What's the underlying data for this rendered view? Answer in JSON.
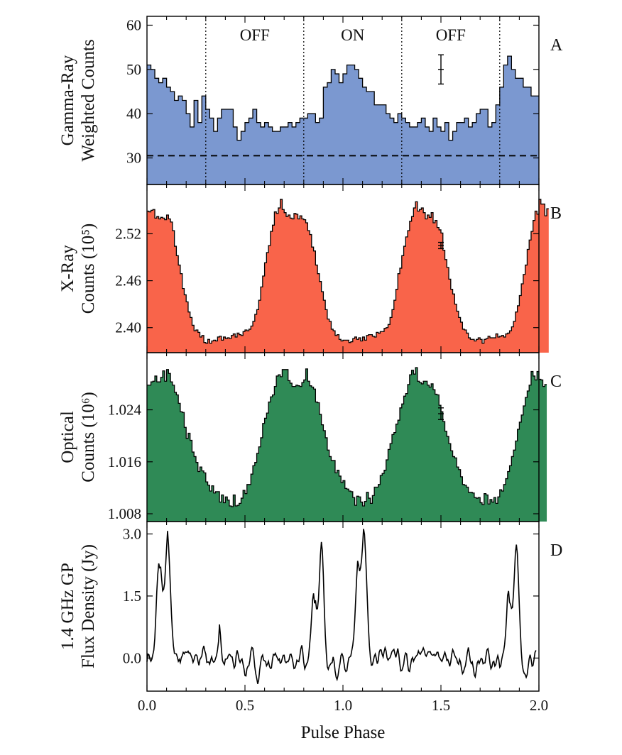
{
  "chart_data": [
    {
      "type": "area",
      "style": "step histogram",
      "panel": "A",
      "ylabel_lines": [
        "Gamma-Ray",
        "Weighted Counts"
      ],
      "ylim": [
        24,
        62
      ],
      "yticks": [
        30,
        40,
        50,
        60
      ],
      "ytick_labels": [
        "30",
        "40",
        "50",
        "60"
      ],
      "fill": "#7b98d0",
      "baseline": 30.5,
      "region_lines_x": [
        0.3,
        0.8,
        1.3,
        1.8
      ],
      "region_labels": [
        {
          "text": "OFF",
          "x": 0.55
        },
        {
          "text": "ON",
          "x": 1.05
        },
        {
          "text": "OFF",
          "x": 1.55
        }
      ],
      "errorbar": {
        "x": 1.5,
        "y": 50,
        "err": 3.3
      },
      "bin_width": 0.02,
      "values": [
        51,
        50,
        48,
        47,
        48,
        46,
        45,
        43,
        44,
        43,
        40,
        37,
        43,
        38,
        44,
        41,
        39,
        36,
        39,
        41,
        41,
        41,
        37,
        34,
        36,
        38,
        39,
        41,
        38,
        37,
        38,
        37,
        36,
        36,
        37,
        37,
        38,
        37,
        38,
        39,
        39,
        40,
        40,
        38,
        39,
        46,
        47,
        50,
        49,
        47,
        49,
        51,
        51,
        50,
        48,
        46,
        45,
        45,
        42,
        42,
        42,
        40,
        39,
        38,
        40,
        39,
        38,
        37,
        37,
        38,
        39,
        37,
        36,
        39,
        37,
        36,
        38,
        34,
        36,
        38,
        38,
        39,
        37,
        38,
        40,
        41,
        41,
        37,
        38,
        42,
        46,
        51,
        53,
        50,
        48,
        48,
        46,
        46,
        44,
        44
      ]
    },
    {
      "type": "area",
      "style": "step histogram",
      "panel": "B",
      "ylabel_lines": [
        "X-Ray",
        "Counts (10⁵)"
      ],
      "ylim": [
        2.368,
        2.583
      ],
      "yticks": [
        2.4,
        2.46,
        2.52
      ],
      "ytick_labels": [
        "2.40",
        "2.46",
        "2.52"
      ],
      "fill": "#f9644a",
      "errorbar": {
        "x": 1.5,
        "y": 2.505,
        "err": 0.004
      },
      "bin_width": 0.01,
      "values": [
        2.549,
        2.548,
        2.55,
        2.551,
        2.54,
        2.542,
        2.539,
        2.541,
        2.54,
        2.538,
        2.544,
        2.539,
        2.535,
        2.524,
        2.504,
        2.492,
        2.48,
        2.469,
        2.45,
        2.442,
        2.433,
        2.42,
        2.413,
        2.403,
        2.396,
        2.397,
        2.394,
        2.388,
        2.39,
        2.381,
        2.38,
        2.385,
        2.38,
        2.383,
        2.384,
        2.383,
        2.388,
        2.389,
        2.384,
        2.388,
        2.386,
        2.387,
        2.386,
        2.39,
        2.392,
        2.388,
        2.393,
        2.391,
        2.39,
        2.395,
        2.397,
        2.396,
        2.398,
        2.402,
        2.408,
        2.417,
        2.423,
        2.435,
        2.452,
        2.466,
        2.483,
        2.496,
        2.505,
        2.523,
        2.531,
        2.548,
        2.546,
        2.553,
        2.564,
        2.551,
        2.547,
        2.542,
        2.544,
        2.54,
        2.539,
        2.546,
        2.545,
        2.539,
        2.543,
        2.539,
        2.538,
        2.534,
        2.524,
        2.519,
        2.503,
        2.498,
        2.48,
        2.469,
        2.459,
        2.446,
        2.435,
        2.423,
        2.411,
        2.408,
        2.398,
        2.396,
        2.39,
        2.391,
        2.385,
        2.383,
        2.384,
        2.384,
        2.384,
        2.381,
        2.382,
        2.386,
        2.388,
        2.385,
        2.387,
        2.383,
        2.388,
        2.384,
        2.39,
        2.391,
        2.391,
        2.389,
        2.388,
        2.394,
        2.393,
        2.395,
        2.395,
        2.399,
        2.4,
        2.404,
        2.413,
        2.423,
        2.435,
        2.449,
        2.469,
        2.476,
        2.492,
        2.504,
        2.516,
        2.524,
        2.536,
        2.542,
        2.553,
        2.561,
        2.549,
        2.551,
        2.553,
        2.547,
        2.539,
        2.544,
        2.541,
        2.547,
        2.534,
        2.537,
        2.528,
        2.525,
        2.521,
        2.499,
        2.487,
        2.477,
        2.462,
        2.449,
        2.443,
        2.43,
        2.421,
        2.413,
        2.407,
        2.398,
        2.397,
        2.393,
        2.387,
        2.385,
        2.385,
        2.383,
        2.385,
        2.387,
        2.385,
        2.38,
        2.385,
        2.386,
        2.389,
        2.387,
        2.387,
        2.387,
        2.392,
        2.388,
        2.389,
        2.39,
        2.388,
        2.392,
        2.393,
        2.396,
        2.401,
        2.408,
        2.42,
        2.428,
        2.441,
        2.456,
        2.468,
        2.48,
        2.5,
        2.512,
        2.523,
        2.537,
        2.549,
        2.545,
        2.564,
        2.558,
        2.558,
        2.543,
        2.552
      ]
    },
    {
      "type": "area",
      "style": "step histogram",
      "panel": "C",
      "ylabel_lines": [
        "Optical",
        "Counts (10⁶)"
      ],
      "ylim": [
        1.0068,
        1.0328
      ],
      "yticks": [
        1.008,
        1.016,
        1.024
      ],
      "ytick_labels": [
        "1.008",
        "1.016",
        "1.024"
      ],
      "fill": "#2f8a56",
      "errorbar": {
        "x": 1.5,
        "y": 1.0234,
        "err": 0.0009
      },
      "bin_width": 0.01,
      "values": [
        1.0278,
        1.0278,
        1.0283,
        1.0284,
        1.0292,
        1.0283,
        1.0283,
        1.029,
        1.03,
        1.0284,
        1.0302,
        1.0296,
        1.0283,
        1.0278,
        1.0267,
        1.0263,
        1.025,
        1.0237,
        1.0236,
        1.0213,
        1.0196,
        1.0204,
        1.0193,
        1.0175,
        1.0168,
        1.0159,
        1.0145,
        1.0152,
        1.0146,
        1.0143,
        1.0129,
        1.0124,
        1.0115,
        1.0123,
        1.0112,
        1.0114,
        1.0114,
        1.0098,
        1.0109,
        1.0097,
        1.0106,
        1.0101,
        1.0092,
        1.0091,
        1.0109,
        1.0092,
        1.0093,
        1.0096,
        1.0104,
        1.0116,
        1.0111,
        1.0125,
        1.0125,
        1.0141,
        1.0154,
        1.0159,
        1.0173,
        1.0183,
        1.0197,
        1.0219,
        1.0227,
        1.0235,
        1.0252,
        1.026,
        1.0263,
        1.0276,
        1.0292,
        1.0294,
        1.0291,
        1.0302,
        1.0302,
        1.0302,
        1.0285,
        1.0281,
        1.0276,
        1.0276,
        1.0278,
        1.0277,
        1.0276,
        1.0282,
        1.0286,
        1.0303,
        1.0284,
        1.0277,
        1.0275,
        1.0272,
        1.0252,
        1.0251,
        1.0233,
        1.0217,
        1.0208,
        1.0197,
        1.0178,
        1.0168,
        1.0162,
        1.0162,
        1.0143,
        1.0147,
        1.0138,
        1.0128,
        1.0131,
        1.0119,
        1.0118,
        1.0115,
        1.0114,
        1.0105,
        1.0093,
        1.0107,
        1.0106,
        1.0098,
        1.0092,
        1.0099,
        1.0113,
        1.0104,
        1.0096,
        1.0108,
        1.0121,
        1.0121,
        1.0125,
        1.0139,
        1.0142,
        1.0147,
        1.0163,
        1.0179,
        1.0188,
        1.0202,
        1.0205,
        1.0218,
        1.0224,
        1.0243,
        1.0249,
        1.0261,
        1.0265,
        1.0279,
        1.0294,
        1.0301,
        1.0295,
        1.0305,
        1.0284,
        1.0282,
        1.028,
        1.0284,
        1.0284,
        1.0278,
        1.0275,
        1.028,
        1.0271,
        1.0264,
        1.0263,
        1.0247,
        1.0237,
        1.0222,
        1.0207,
        1.0199,
        1.0188,
        1.0177,
        1.0168,
        1.0166,
        1.0152,
        1.0148,
        1.0137,
        1.0125,
        1.0124,
        1.0121,
        1.0113,
        1.0113,
        1.0112,
        1.0105,
        1.0104,
        1.0105,
        1.0097,
        1.0094,
        1.0111,
        1.0109,
        1.0095,
        1.0102,
        1.0098,
        1.0105,
        1.0096,
        1.0106,
        1.0117,
        1.0115,
        1.0125,
        1.0134,
        1.0145,
        1.0154,
        1.0168,
        1.0178,
        1.0192,
        1.021,
        1.0221,
        1.0232,
        1.0246,
        1.0259,
        1.0269,
        1.0278,
        1.0299,
        1.0292,
        1.0286,
        1.0299,
        1.0287,
        1.0286,
        1.0276,
        1.0279
      ]
    },
    {
      "type": "line",
      "panel": "D",
      "ylabel_lines": [
        "1.4 GHz GP",
        "Flux Density (Jy)"
      ],
      "ylim": [
        -0.8,
        3.3
      ],
      "yticks": [
        0.0,
        1.5,
        3.0
      ],
      "ytick_labels": [
        "0.0",
        "1.5",
        "3.0"
      ],
      "sampling": 0.005,
      "values": [
        -0.089,
        0.096,
        0.08,
        -0.023,
        -0.078,
        -0.025,
        0.084,
        0.196,
        0.482,
        1.013,
        1.598,
        2.022,
        2.286,
        2.181,
        2.194,
        1.9,
        1.626,
        1.662,
        1.807,
        2.224,
        2.658,
        3.073,
        2.733,
        2.238,
        1.647,
        1.067,
        0.615,
        0.292,
        0.116,
        0.103,
        0.101,
        0.022,
        -0.079,
        -0.033,
        -0.109,
        0.005,
        0.056,
        0.138,
        0.103,
        0.146,
        0.141,
        0.137,
        0.165,
        0.117,
        0.122,
        0.06,
        -0.005,
        -0.104,
        -0.038,
        0.06,
        0.081,
        0.06,
        -0.074,
        -0.176,
        -0.037,
        0.004,
        0.055,
        0.218,
        0.293,
        0.174,
        0.095,
        -0.105,
        -0.095,
        -0.097,
        -0.149,
        -0.049,
        0.03,
        -0.063,
        -0.1,
        -0.082,
        -0.009,
        0.063,
        0.199,
        0.395,
        0.811,
        0.549,
        0.203,
        -0.052,
        -0.117,
        -0.155,
        -0.028,
        -0.025,
        -0.011,
        0.06,
        0.091,
        0.072,
        0.03,
        0.026,
        -0.116,
        -0.24,
        -0.188,
        0.057,
        0.187,
        0.093,
        -0.04,
        -0.106,
        -0.05,
        -0.022,
        -0.142,
        -0.259,
        -0.421,
        -0.432,
        -0.258,
        -0.202,
        -0.186,
        -0.062,
        0.162,
        0.257,
        0.238,
        0.051,
        -0.208,
        -0.376,
        -0.493,
        -0.624,
        -0.533,
        -0.286,
        -0.109,
        0.027,
        0.073,
        -0.049,
        -0.068,
        -0.081,
        -0.189,
        -0.145,
        -0.079,
        -0.197,
        -0.25,
        -0.241,
        -0.044,
        0.089,
        0.073,
        0.116,
        0.053,
        0.006,
        -0.055,
        -0.022,
        -0.124,
        -0.102,
        -0.017,
        0.066,
        0.069,
        -0.084,
        -0.112,
        -0.086,
        -0.088,
        -0.037,
        0.086,
        0.094,
        0.015,
        -0.106,
        -0.253,
        -0.241,
        -0.168,
        -0.052,
        -0.079,
        -0.087,
        0.05,
        0.222,
        0.308,
        0.143,
        -0.108,
        -0.261,
        -0.198,
        -0.135,
        -0.091,
        0.06,
        0.325,
        0.603,
        1.0,
        1.402,
        1.564,
        1.324,
        1.395,
        1.19,
        1.192,
        1.428,
        1.906,
        2.488,
        2.805,
        2.589,
        1.989,
        1.196,
        0.552,
        0.132,
        -0.21,
        -0.272,
        -0.195,
        -0.161,
        -0.12,
        -0.112,
        0.027,
        -0.09,
        -0.315,
        -0.459,
        -0.519,
        -0.421,
        -0.256,
        -0.128,
        0.064,
        0.104,
        0.039,
        -0.117,
        -0.274,
        -0.326,
        -0.306,
        -0.127,
        0.005,
        0.027,
        0.049,
        0.182,
        0.308,
        0.515,
        0.908,
        1.416,
        1.937,
        2.35,
        2.238,
        2.101,
        2.186,
        2.371,
        2.693,
        3.122,
        2.992,
        2.543,
        1.969,
        1.35,
        0.745,
        0.301,
        0.019,
        -0.173,
        -0.167,
        -0.07,
        0.041,
        0.097,
        -0.006,
        -0.137,
        -0.066,
        0.142,
        0.199,
        0.195,
        0.09,
        0.024,
        0.155,
        0.248,
        0.173,
        0.006,
        -0.05,
        -0.014,
        0.008,
        0.077,
        0.155,
        0.185,
        0.208,
        0.103,
        0.017,
        0.121,
        0.231,
        0.09,
        -0.133,
        -0.312,
        -0.305,
        -0.238,
        -0.145,
        0.049,
        0.122,
        0.099,
        -0.141,
        -0.31,
        -0.326,
        -0.172,
        -0.034,
        0.013,
        -0.077,
        -0.018,
        0.02,
        0.056,
        0.08,
        0.171,
        0.114,
        0.092,
        0.144,
        0.179,
        0.246,
        0.183,
        0.08,
        0.044,
        0.1,
        0.152,
        0.149,
        0.156,
        0.097,
        0.072,
        0.069,
        0.091,
        0.054,
        0.081,
        0.14,
        0.141,
        0.028,
        -0.008,
        -0.05,
        -0.081,
        -0.018,
        0.066,
        0.14,
        0.06,
        -0.057,
        -0.036,
        -0.107,
        -0.201,
        -0.098,
        0.09,
        0.204,
        0.146,
        0.064,
        0.018,
        -0.018,
        -0.112,
        -0.148,
        -0.031,
        -0.101,
        -0.252,
        -0.378,
        -0.337,
        -0.248,
        -0.183,
        -0.024,
        0.137,
        0.256,
        0.108,
        -0.071,
        -0.133,
        -0.096,
        -0.232,
        -0.405,
        -0.456,
        -0.311,
        -0.12,
        -0.069,
        -0.133,
        -0.071,
        -0.008,
        -0.024,
        -0.138,
        -0.119,
        -0.118,
        0.053,
        0.198,
        0.227,
        0.086,
        -0.122,
        -0.26,
        -0.213,
        -0.099,
        -0.081,
        -0.195,
        -0.159,
        -0.031,
        0.058,
        -0.033,
        -0.224,
        -0.193,
        -0.037,
        0.08,
        0.17,
        0.331,
        0.596,
        1.005,
        1.512,
        1.622,
        1.35,
        1.301,
        1.202,
        1.225,
        1.542,
        2.026,
        2.547,
        2.742,
        2.517,
        1.93,
        1.278,
        0.682,
        0.166,
        -0.165,
        -0.305,
        -0.372,
        -0.398,
        -0.466,
        -0.4,
        -0.214,
        -0.022,
        0.081,
        -0.028,
        -0.195,
        -0.179,
        -0.033,
        0.137,
        0.187
      ]
    }
  ],
  "xaxis": {
    "xlim": [
      0.0,
      2.0
    ],
    "xticks": [
      0.0,
      0.5,
      1.0,
      1.5,
      2.0
    ],
    "xtick_labels": [
      "0.0",
      "0.5",
      "1.0",
      "1.5",
      "2.0"
    ],
    "xlabel": "Pulse Phase"
  }
}
